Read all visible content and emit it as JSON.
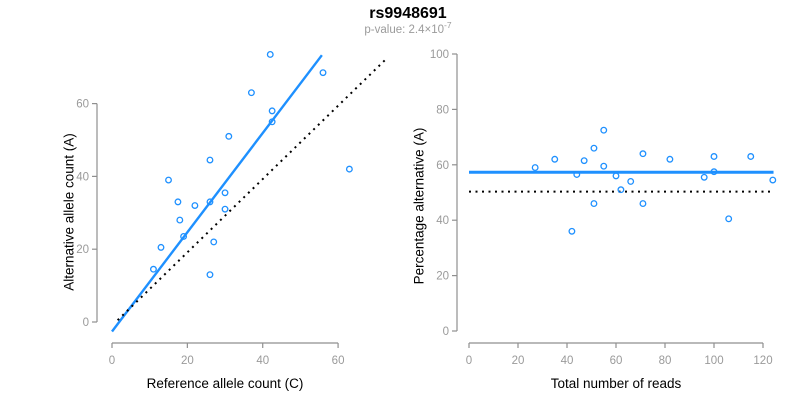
{
  "header": {
    "title": "rs9948691",
    "subtitle_prefix": "p-value: 2.4×10",
    "subtitle_exponent": "-7"
  },
  "colors": {
    "accent_blue": "#1E90FF",
    "axis_gray": "#8f8f8f",
    "tick_label_gray": "#9a9a9a",
    "dotted_line_black": "#000000",
    "title_black": "#000000",
    "subtitle_gray": "#9b9b9b"
  },
  "chart_data": [
    {
      "id": "allele-count-scatter",
      "type": "scatter",
      "xlabel": "Reference allele count (C)",
      "ylabel": "Alternative allele count (A)",
      "xticks": [
        0,
        20,
        40,
        60
      ],
      "yticks": [
        0,
        20,
        40,
        60
      ],
      "xlim": [
        0,
        63
      ],
      "ylim": [
        -3,
        74
      ],
      "grid": false,
      "legend": "none",
      "marker": "open-circle",
      "points": [
        [
          42,
          73.5
        ],
        [
          56,
          68.5
        ],
        [
          37,
          63
        ],
        [
          42.5,
          58
        ],
        [
          42.5,
          55
        ],
        [
          31,
          51
        ],
        [
          26,
          44.5
        ],
        [
          15,
          39
        ],
        [
          30,
          35.5
        ],
        [
          17.5,
          33
        ],
        [
          26,
          33
        ],
        [
          22,
          32
        ],
        [
          30,
          31
        ],
        [
          18,
          28
        ],
        [
          19,
          23.5
        ],
        [
          13,
          20.5
        ],
        [
          27,
          22
        ],
        [
          11,
          14.5
        ],
        [
          26,
          13
        ],
        [
          63,
          42
        ]
      ],
      "lines": [
        {
          "name": "regression-line",
          "x1": 0,
          "y1": -2.6,
          "x2": 55.7,
          "y2": 73.3,
          "color": "#1E90FF",
          "width": 2.4,
          "dash": ""
        },
        {
          "name": "identity-line",
          "x1": 1.5,
          "y1": 0.5,
          "x2": 73,
          "y2": 72.5,
          "color": "#000000",
          "width": 2,
          "dash": "2 4.5"
        }
      ]
    },
    {
      "id": "percentage-vs-reads-scatter",
      "type": "scatter",
      "xlabel": "Total number of reads",
      "ylabel": "Percentage alternative (A)",
      "xticks": [
        0,
        20,
        40,
        60,
        80,
        100,
        120
      ],
      "yticks": [
        0,
        20,
        40,
        60,
        80,
        100
      ],
      "xlim": [
        0,
        125
      ],
      "ylim": [
        0,
        100
      ],
      "grid": false,
      "legend": "none",
      "marker": "open-circle",
      "points": [
        [
          27,
          59
        ],
        [
          35,
          62
        ],
        [
          42,
          36
        ],
        [
          44,
          56.5
        ],
        [
          47,
          61.5
        ],
        [
          51,
          66
        ],
        [
          51,
          46
        ],
        [
          55,
          72.5
        ],
        [
          55,
          59.5
        ],
        [
          60,
          56
        ],
        [
          62,
          51
        ],
        [
          66,
          54
        ],
        [
          71,
          64
        ],
        [
          71,
          46
        ],
        [
          82,
          62
        ],
        [
          96,
          55.5
        ],
        [
          100,
          57.5
        ],
        [
          100,
          63
        ],
        [
          106,
          40.5
        ],
        [
          115,
          63
        ],
        [
          124,
          54.5
        ]
      ],
      "lines": [
        {
          "name": "mean-percentage-line",
          "x1": 0,
          "y1": 57.3,
          "x2": 124.3,
          "y2": 57.3,
          "color": "#1E90FF",
          "width": 3,
          "dash": ""
        },
        {
          "name": "fifty-percent-line",
          "x1": 0,
          "y1": 50.3,
          "x2": 124.3,
          "y2": 50.3,
          "color": "#000000",
          "width": 2,
          "dash": "2 4.5"
        }
      ]
    }
  ]
}
